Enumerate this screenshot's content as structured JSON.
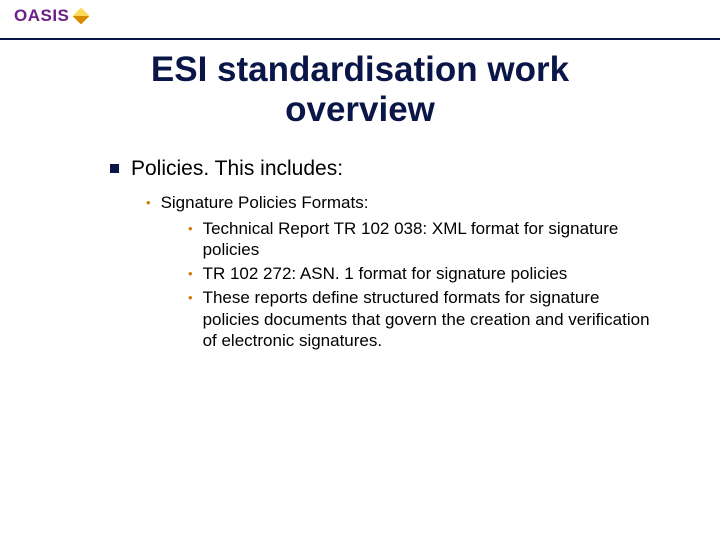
{
  "logo": {
    "text": "OASIS"
  },
  "title": {
    "line1": "ESI standardisation work",
    "line2": "overview"
  },
  "colors": {
    "title_color": "#0a1648",
    "divider_color": "#0a1648",
    "lvl1_bullet_color": "#0a1648",
    "sub_bullet_color": "#d17a00",
    "text_color": "#000000",
    "logo_color": "#6d1f86",
    "background": "#ffffff",
    "diamond_light": "#ffd95a",
    "diamond_dark": "#d88a00"
  },
  "typography": {
    "title_fontsize": 35,
    "title_weight": 900,
    "lvl1_fontsize": 21,
    "lvl2_fontsize": 17,
    "lvl3_fontsize": 17
  },
  "bullets": {
    "lvl1": {
      "text": "Policies. This includes:"
    },
    "lvl2": {
      "text": "Signature Policies Formats:"
    },
    "lvl3": {
      "item1": "Technical Report TR 102 038: XML format for signature policies",
      "item2": "TR 102 272: ASN. 1 format for signature policies",
      "item3": "These reports define structured formats for signature policies documents that govern the creation and verification of electronic signatures."
    }
  }
}
